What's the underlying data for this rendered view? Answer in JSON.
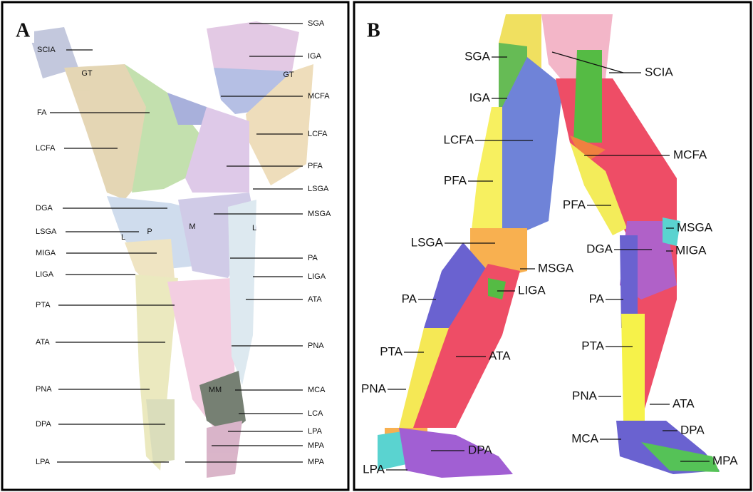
{
  "panels": [
    {
      "letter": "A",
      "labels": [
        "SCIA",
        "FA",
        "LCFA",
        "DGA",
        "LSGA",
        "MIGA",
        "LIGA",
        "PTA",
        "ATA",
        "PNA",
        "DPA",
        "LPA",
        "SGA",
        "IGA",
        "MCFA",
        "LCFA",
        "PFA",
        "LSGA",
        "MSGA",
        "PA",
        "LIGA",
        "ATA",
        "PNA",
        "MCA",
        "LCA",
        "LPA",
        "MPA",
        "MPA",
        "GT",
        "GT",
        "L",
        "P",
        "M",
        "L",
        "MM"
      ]
    },
    {
      "letter": "B",
      "labels": [
        "SGA",
        "IGA",
        "LCFA",
        "PFA",
        "LSGA",
        "PA",
        "PTA",
        "PNA",
        "LPA",
        "SCIA",
        "MCFA",
        "PFA",
        "MSGA",
        "DGA",
        "MIGA",
        "MSGA",
        "LIGA",
        "PA",
        "PTA",
        "ATA",
        "ATA",
        "PNA",
        "MCA",
        "DPA",
        "DPA",
        "MPA"
      ]
    }
  ]
}
